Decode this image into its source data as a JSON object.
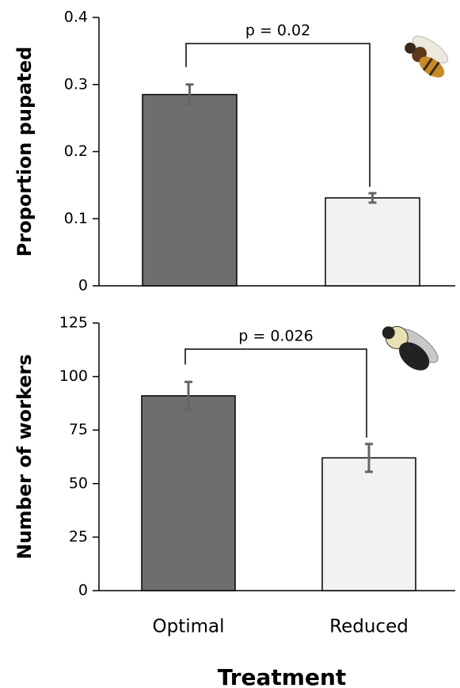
{
  "chart_data": [
    {
      "type": "bar",
      "ylabel": "Proportion pupated",
      "annotation": "p = 0.02",
      "categories": [
        null,
        null
      ],
      "series": [
        {
          "colors": [
            "#6e6e6e",
            "#f2f2f2"
          ],
          "values": [
            0.285,
            0.131
          ],
          "errors": [
            0.015,
            0.007
          ]
        }
      ],
      "ylim": [
        0,
        0.4
      ],
      "yticks": [
        0,
        0.1,
        0.2,
        0.3,
        0.4
      ]
    },
    {
      "type": "bar",
      "ylabel": "Number of workers",
      "xlabel": "Treatment",
      "annotation": "p = 0.026",
      "categories": [
        "Optimal",
        "Reduced"
      ],
      "series": [
        {
          "colors": [
            "#6e6e6e",
            "#f2f2f2"
          ],
          "values": [
            91,
            62
          ],
          "errors": [
            6.5,
            6.5
          ]
        }
      ],
      "ylim": [
        0,
        125
      ],
      "yticks": [
        0,
        25,
        50,
        75,
        100,
        125
      ]
    }
  ]
}
